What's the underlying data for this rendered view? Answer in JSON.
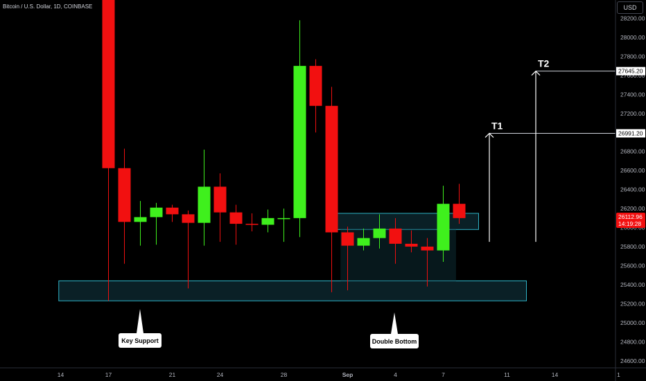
{
  "header": {
    "title": "Bitcoin / U.S. Dollar, 1D, COINBASE",
    "currency": "USD"
  },
  "colors": {
    "up": "#3ff01d",
    "down": "#f21010",
    "zone_fill": "#0d2b33",
    "zone_border": "#2fb5c8",
    "background": "#000000"
  },
  "chart_data": {
    "type": "candlestick",
    "title": "Bitcoin / U.S. Dollar, 1D, COINBASE",
    "y_axis": {
      "ticks": [
        28200,
        28000,
        27800,
        27600,
        27400,
        27200,
        27000,
        26800,
        26600,
        26400,
        26200,
        26000,
        25800,
        25600,
        25400,
        25200,
        25000,
        24800,
        24600
      ],
      "range": [
        24540,
        28360
      ]
    },
    "x_axis": {
      "ticks": [
        {
          "label": "14",
          "index": -3
        },
        {
          "label": "17",
          "index": 0
        },
        {
          "label": "21",
          "index": 4
        },
        {
          "label": "24",
          "index": 7
        },
        {
          "label": "28",
          "index": 11
        },
        {
          "label": "Sep",
          "index": 15
        },
        {
          "label": "4",
          "index": 18
        },
        {
          "label": "7",
          "index": 21
        },
        {
          "label": "11",
          "index": 25
        },
        {
          "label": "14",
          "index": 28
        },
        {
          "label": "1",
          "index": 32
        }
      ]
    },
    "candles": [
      {
        "o": 28400,
        "h": 28400,
        "l": 25230,
        "c": 26625
      },
      {
        "o": 26625,
        "h": 26830,
        "l": 25620,
        "c": 26060
      },
      {
        "o": 26060,
        "h": 26280,
        "l": 25810,
        "c": 26110
      },
      {
        "o": 26110,
        "h": 26260,
        "l": 25820,
        "c": 26210
      },
      {
        "o": 26210,
        "h": 26240,
        "l": 26060,
        "c": 26140
      },
      {
        "o": 26140,
        "h": 26180,
        "l": 25360,
        "c": 26050
      },
      {
        "o": 26050,
        "h": 26820,
        "l": 25810,
        "c": 26430
      },
      {
        "o": 26430,
        "h": 26570,
        "l": 25850,
        "c": 26160
      },
      {
        "o": 26160,
        "h": 26240,
        "l": 25820,
        "c": 26040
      },
      {
        "o": 26040,
        "h": 26150,
        "l": 25960,
        "c": 26030
      },
      {
        "o": 26030,
        "h": 26190,
        "l": 25950,
        "c": 26100
      },
      {
        "o": 26090,
        "h": 26200,
        "l": 25850,
        "c": 26100
      },
      {
        "o": 26100,
        "h": 28180,
        "l": 25900,
        "c": 27700
      },
      {
        "o": 27700,
        "h": 27770,
        "l": 27000,
        "c": 27280
      },
      {
        "o": 27280,
        "h": 27480,
        "l": 25320,
        "c": 25950
      },
      {
        "o": 25950,
        "h": 26010,
        "l": 25340,
        "c": 25810
      },
      {
        "o": 25810,
        "h": 25990,
        "l": 25760,
        "c": 25890
      },
      {
        "o": 25890,
        "h": 26140,
        "l": 25780,
        "c": 25990
      },
      {
        "o": 25990,
        "h": 26100,
        "l": 25620,
        "c": 25830
      },
      {
        "o": 25830,
        "h": 25970,
        "l": 25740,
        "c": 25800
      },
      {
        "o": 25800,
        "h": 25890,
        "l": 25380,
        "c": 25760
      },
      {
        "o": 25760,
        "h": 26440,
        "l": 25640,
        "c": 26250
      },
      {
        "o": 26250,
        "h": 26460,
        "l": 26040,
        "c": 26100
      }
    ],
    "zones": [
      {
        "name": "Key Support",
        "y_low": 25230,
        "y_high": 25440,
        "from_index": -2.9,
        "to_index": 26.0
      },
      {
        "name": "Double Bottom neckline",
        "y_low": 25980,
        "y_high": 26150,
        "from_index": 14.0,
        "to_index": 23.0
      }
    ],
    "targets": [
      {
        "label": "T1",
        "price": "26991.20",
        "value": 26991.2
      },
      {
        "label": "T2",
        "price": "27645.20",
        "value": 27645.2
      }
    ],
    "annotations": [
      {
        "text": "Key Support"
      },
      {
        "text": "Double Bottom"
      }
    ],
    "current_price": {
      "value": "26112.96",
      "countdown": "14:19:28"
    }
  }
}
